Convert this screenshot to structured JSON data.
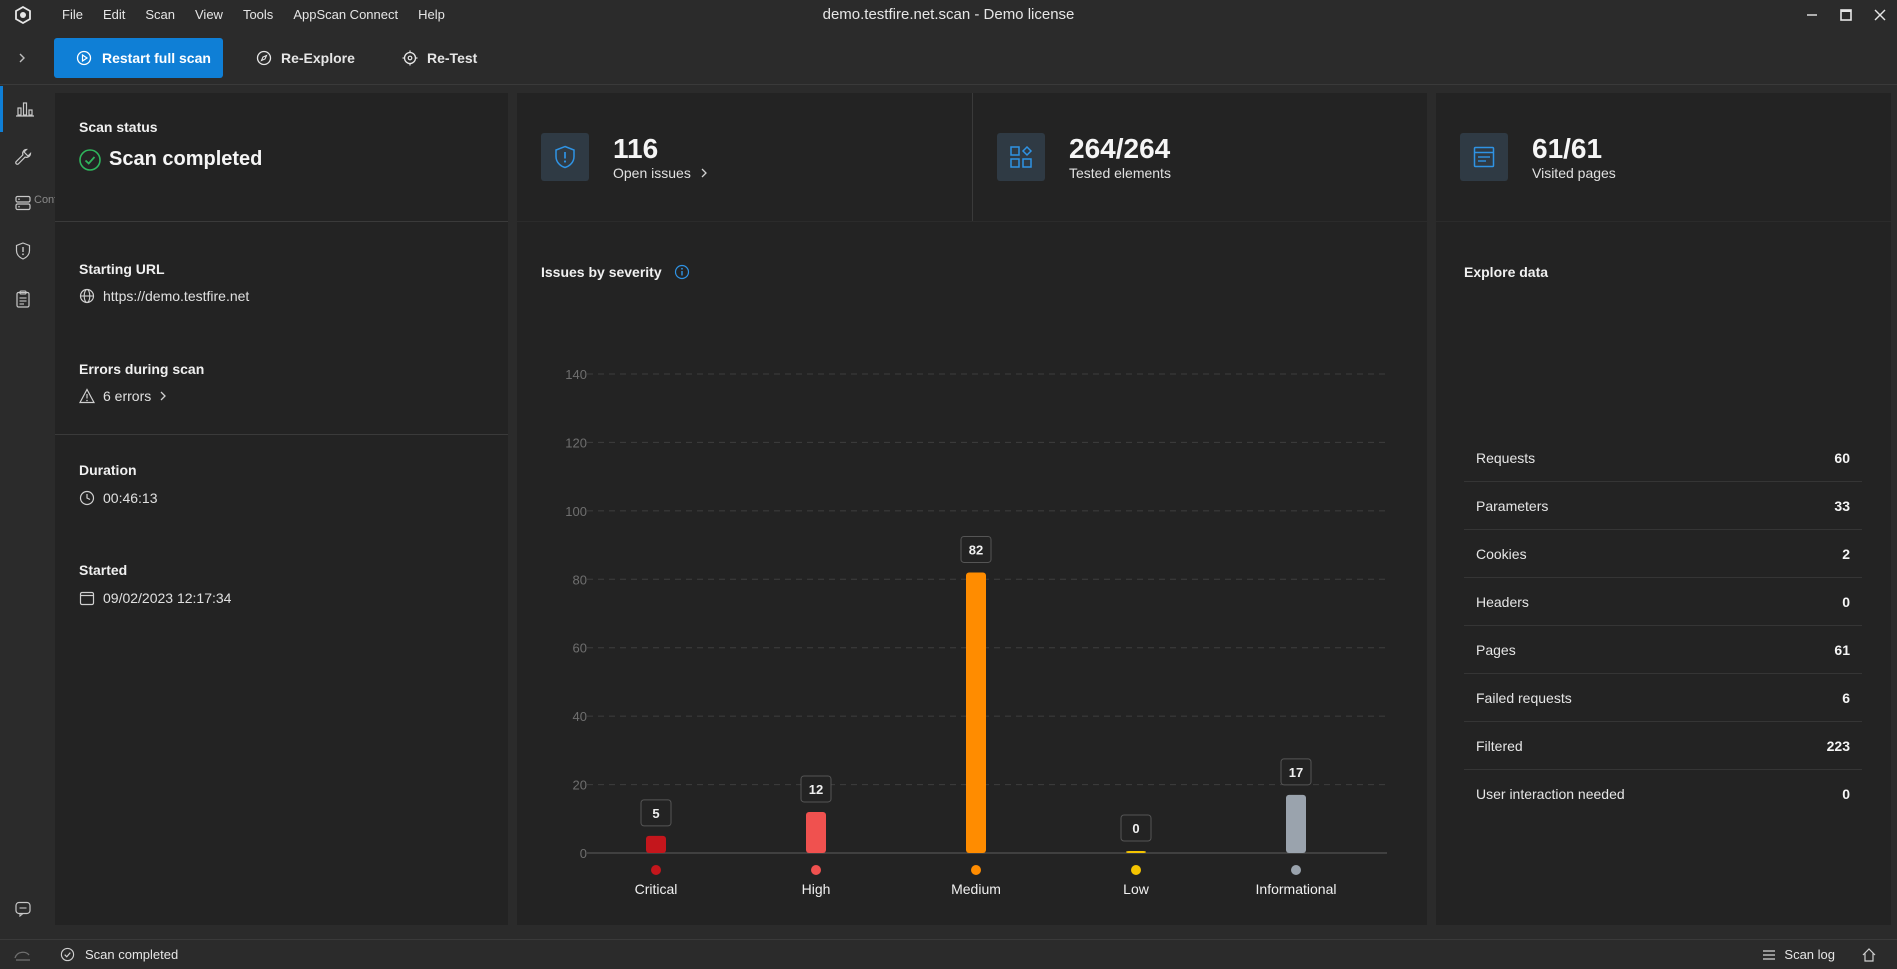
{
  "window": {
    "title": "demo.testfire.net.scan - Demo license",
    "menu": [
      "File",
      "Edit",
      "Scan",
      "View",
      "Tools",
      "AppScan Connect",
      "Help"
    ]
  },
  "toolbar": {
    "restart_label": "Restart full scan",
    "reexplore_label": "Re-Explore",
    "retest_label": "Re-Test"
  },
  "rail": {
    "tooltip": "Configuration"
  },
  "scan": {
    "status_heading": "Scan status",
    "status_value": "Scan completed",
    "starting_url_heading": "Starting URL",
    "starting_url": "https://demo.testfire.net",
    "errors_heading": "Errors during scan",
    "errors_value": "6 errors",
    "duration_heading": "Duration",
    "duration_value": "00:46:13",
    "started_heading": "Started",
    "started_value": "09/02/2023 12:17:34"
  },
  "stats": {
    "issues_value": "116",
    "issues_label": "Open issues",
    "tested_value": "264/264",
    "tested_label": "Tested elements",
    "pages_value": "61/61",
    "pages_label": "Visited pages"
  },
  "chart_title": "Issues by severity",
  "chart_data": {
    "type": "bar",
    "title": "Issues by severity",
    "categories": [
      "Critical",
      "High",
      "Medium",
      "Low",
      "Informational"
    ],
    "values": [
      5,
      12,
      82,
      0,
      17
    ],
    "colors": [
      "#c4161c",
      "#f0514f",
      "#ff8c00",
      "#f5c400",
      "#9aa3ad"
    ],
    "ylim": [
      0,
      140
    ],
    "yticks": [
      0,
      20,
      40,
      60,
      80,
      100,
      120,
      140
    ],
    "grid": true,
    "xlabel": "",
    "ylabel": ""
  },
  "explore": {
    "heading": "Explore data",
    "rows": [
      {
        "label": "Requests",
        "value": "60"
      },
      {
        "label": "Parameters",
        "value": "33"
      },
      {
        "label": "Cookies",
        "value": "2"
      },
      {
        "label": "Headers",
        "value": "0"
      },
      {
        "label": "Pages",
        "value": "61"
      },
      {
        "label": "Failed requests",
        "value": "6"
      },
      {
        "label": "Filtered",
        "value": "223"
      },
      {
        "label": "User interaction needed",
        "value": "0"
      }
    ]
  },
  "statusbar": {
    "status": "Scan completed",
    "scan_log": "Scan log"
  }
}
